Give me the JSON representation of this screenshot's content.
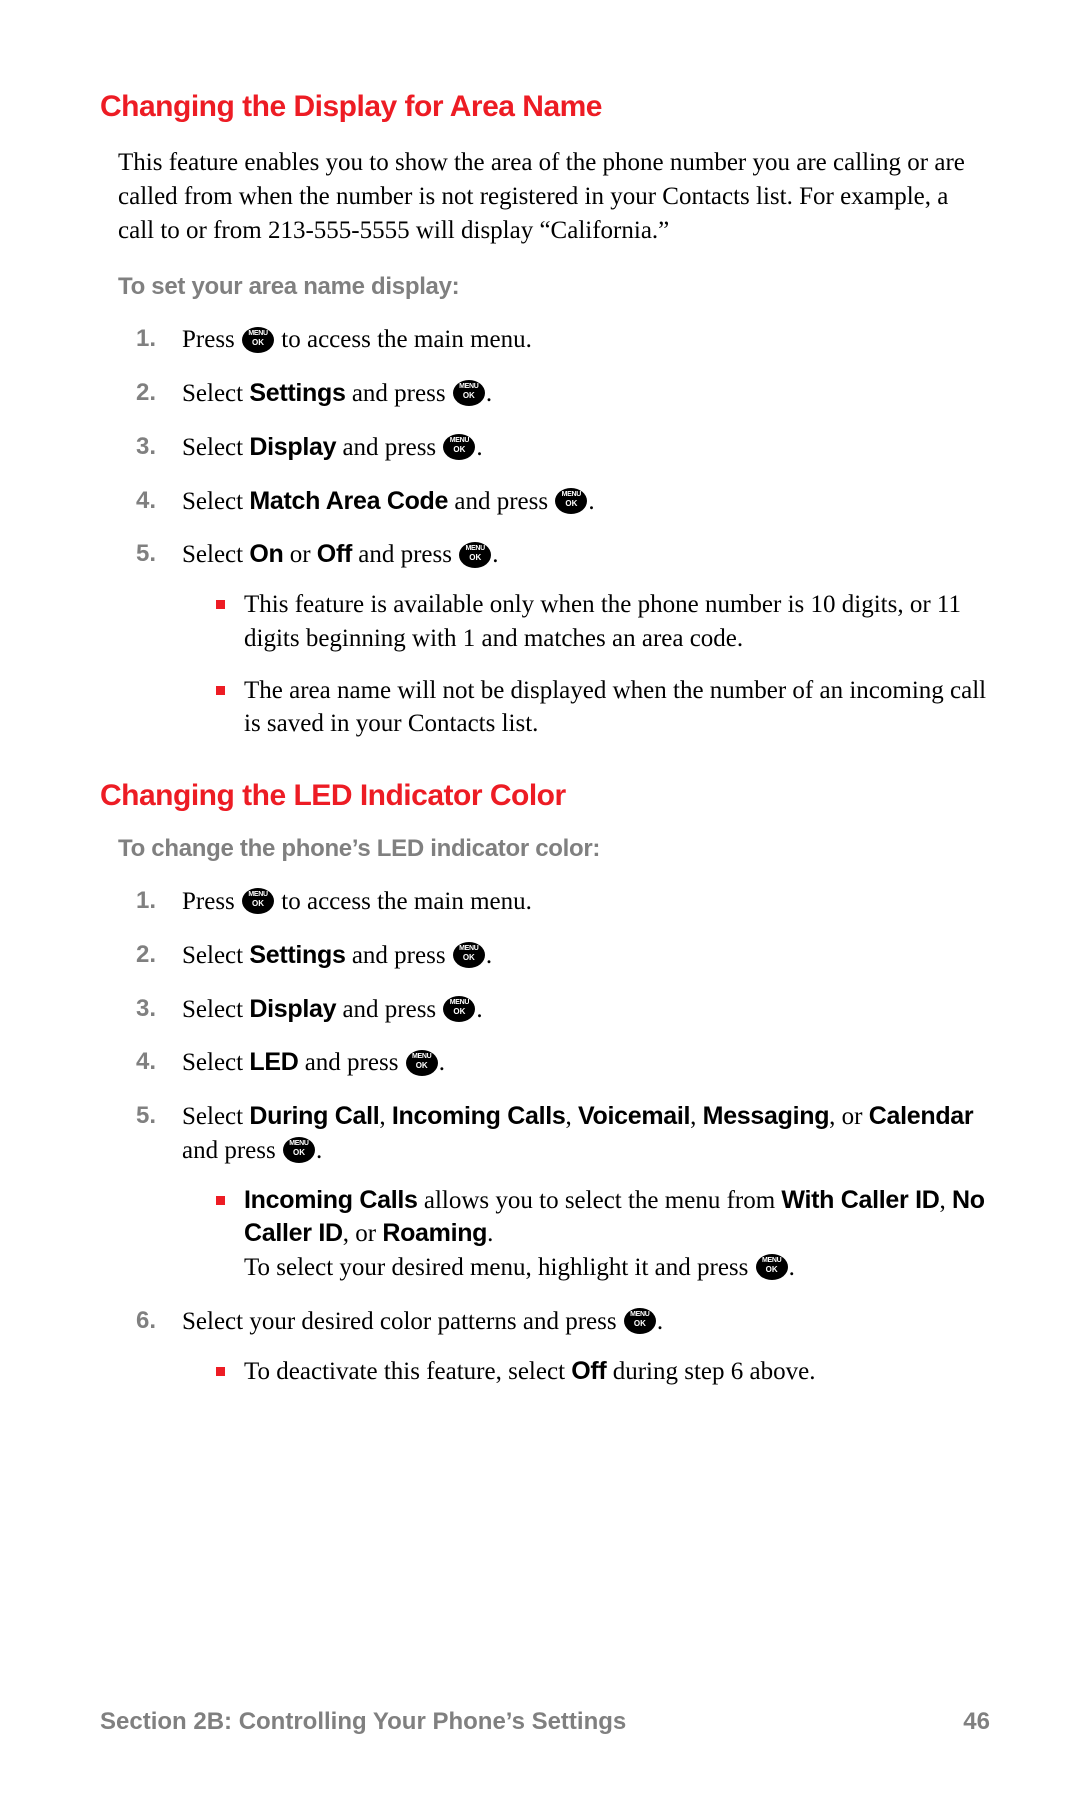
{
  "colors": {
    "accent": "#ed1c24",
    "gray": "#808080",
    "text": "#000000",
    "background": "#ffffff"
  },
  "typography": {
    "heading_family": "Arial",
    "heading_size_pt": 22,
    "body_family": "Georgia",
    "body_size_pt": 18,
    "instruction_size_pt": 17
  },
  "section1": {
    "heading": "Changing the Display for Area Name",
    "intro": "This feature enables you to show the area of the phone number you are calling or are called from when the number is not registered in your Contacts list. For example, a call to or from 213-555-5555 will display “California.”",
    "instruction_label": "To set your area name display:",
    "step1_a": "Press ",
    "step1_b": " to access the main menu.",
    "step2_a": "Select ",
    "step2_bold": "Settings",
    "step2_b": " and press ",
    "step2_c": ".",
    "step3_a": "Select ",
    "step3_bold": "Display",
    "step3_b": " and press ",
    "step3_c": ".",
    "step4_a": "Select ",
    "step4_bold": "Match Area Code",
    "step4_b": " and press ",
    "step4_c": ".",
    "step5_a": "Select ",
    "step5_bold1": "On",
    "step5_mid": " or ",
    "step5_bold2": "Off",
    "step5_b": " and press ",
    "step5_c": ".",
    "note1": "This feature is available only when the phone number is 10 digits, or 11 digits beginning with 1 and matches an area code.",
    "note2": "The area name will not be displayed when the number of an incoming call is saved in your Contacts list."
  },
  "section2": {
    "heading": "Changing the LED Indicator Color",
    "instruction_label": "To change the phone’s LED indicator color:",
    "step1_a": "Press ",
    "step1_b": " to access the main menu.",
    "step2_a": "Select ",
    "step2_bold": "Settings",
    "step2_b": " and press ",
    "step2_c": ".",
    "step3_a": "Select ",
    "step3_bold": "Display",
    "step3_b": " and press ",
    "step3_c": ".",
    "step4_a": "Select ",
    "step4_bold": "LED",
    "step4_b": " and press ",
    "step4_c": ".",
    "step5_a": "Select ",
    "step5_b1": "During Call",
    "step5_s1": ", ",
    "step5_b2": "Incoming Calls",
    "step5_s2": ", ",
    "step5_b3": "Voicemail",
    "step5_s3": ", ",
    "step5_b4": "Messaging",
    "step5_s4": ", or ",
    "step5_b5": "Calendar",
    "step5_c": " and press ",
    "step5_d": ".",
    "note1_b1": "Incoming Calls",
    "note1_t1": " allows you to select the menu from ",
    "note1_b2": "With Caller ID",
    "note1_s1": ", ",
    "note1_b3": "No Caller ID",
    "note1_s2": ", or ",
    "note1_b4": "Roaming",
    "note1_t2": ".",
    "note1_line2a": "To select your desired menu, highlight it and press ",
    "note1_line2b": ".",
    "step6_a": "Select your desired color patterns and press ",
    "step6_b": ".",
    "note2_a": "To deactivate this feature, select ",
    "note2_bold": "Off",
    "note2_b": " during step 6 above."
  },
  "footer": {
    "section_label": "Section 2B: Controlling Your Phone’s Settings",
    "page_number": "46"
  }
}
